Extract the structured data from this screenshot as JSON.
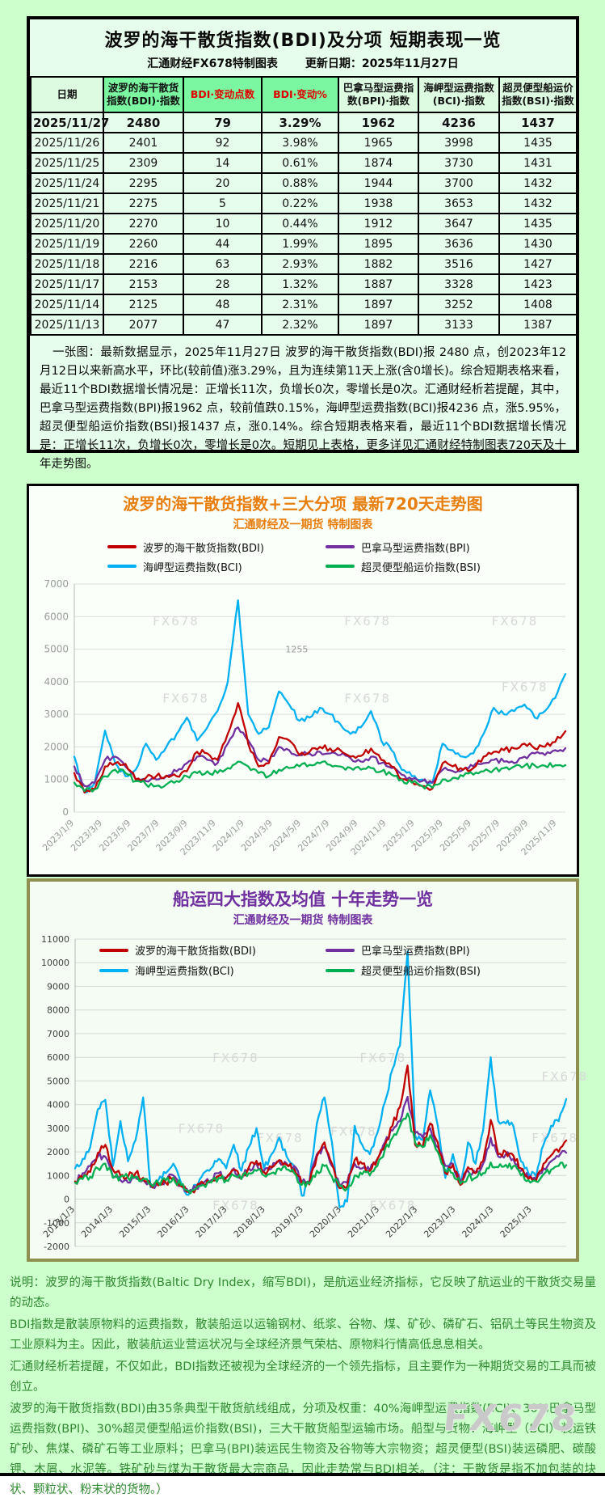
{
  "page": {
    "watermark": "FX678"
  },
  "table_section": {
    "title": "波罗的海干散货指数(BDI)及分项 短期表现一览",
    "subtitle_left": "汇通财经FX678特制图表",
    "subtitle_right": "更新日期：2025年11月27日",
    "columns": [
      "日期",
      "波罗的海干散货指数(BDI)·指数",
      "BDI·变动点数",
      "BDI·变动%",
      "巴拿马型运费指数(BPI)·指数",
      "海岬型运费指数(BCI)·指数",
      "超灵便型船运价指数(BSI)·指数"
    ],
    "rows": [
      [
        "2025/11/27",
        "2480",
        "79",
        "3.29%",
        "1962",
        "4236",
        "1437"
      ],
      [
        "2025/11/26",
        "2401",
        "92",
        "3.98%",
        "1965",
        "3998",
        "1435"
      ],
      [
        "2025/11/25",
        "2309",
        "14",
        "0.61%",
        "1874",
        "3730",
        "1431"
      ],
      [
        "2025/11/24",
        "2295",
        "20",
        "0.88%",
        "1944",
        "3700",
        "1432"
      ],
      [
        "2025/11/21",
        "2275",
        "5",
        "0.22%",
        "1938",
        "3653",
        "1432"
      ],
      [
        "2025/11/20",
        "2270",
        "10",
        "0.44%",
        "1912",
        "3647",
        "1435"
      ],
      [
        "2025/11/19",
        "2260",
        "44",
        "1.99%",
        "1895",
        "3636",
        "1430"
      ],
      [
        "2025/11/18",
        "2216",
        "63",
        "2.93%",
        "1882",
        "3516",
        "1427"
      ],
      [
        "2025/11/17",
        "2153",
        "28",
        "1.32%",
        "1887",
        "3328",
        "1423"
      ],
      [
        "2025/11/14",
        "2125",
        "48",
        "2.31%",
        "1897",
        "3252",
        "1408"
      ],
      [
        "2025/11/13",
        "2077",
        "47",
        "2.32%",
        "1897",
        "3133",
        "1387"
      ]
    ],
    "note": "一张图：最新数据显示，2025年11月27日 波罗的海干散货指数(BDI)报 2480 点，创2023年12月12日以来新高水平，环比(较前值)涨3.29%，且为连续第11天上涨(含0增长)。综合短期表格来看，最近11个BDI数据增长情况是：正增长11次，负增长0次，零增长是0次。汇通财经析若提醒，其中，巴拿马型运费指数(BPI)报1962 点，较前值跌0.15%，海岬型运费指数(BCI)报4236 点，涨5.95%，超灵便型船运价指数(BSI)报1437 点，涨0.14%。综合短期表格来看，最近11个BDI数据增长情况是：正增长11次，负增长0次，零增长是0次。短期见上表格，更多详见汇通财经特制图表720天及十年走势图。"
  },
  "footer": {
    "paragraphs": [
      "说明：波罗的海干散货指数(Baltic Dry Index，缩写BDI)，是航运业经济指标，它反映了航运业的干散货交易量的动态。",
      "BDI指数是散装原物料的运费指数，散装船运以运输钢材、纸浆、谷物、煤、矿砂、磷矿石、铝矾土等民生物资及工业原料为主。因此，散装航运业营运状况与全球经济景气荣枯、原物料行情高低息息相关。",
      "汇通财经析若提醒，不仅如此，BDI指数还被视为全球经济的一个领先指标，且主要作为一种期货交易的工具而被创立。",
      "波罗的海干散货指数(BDI)由35条典型干散货航线组成，分项及权重：40%海岬型运费指数(BCI)、30%巴拿马型运费指数(BPI)、30%超灵便型船运价指数(BSI)，三大干散货船型运输市场。船型与货物：海岬型（BCI）装运铁矿砂、焦煤、磷矿石等工业原料；巴拿马(BPI)装运民生物资及谷物等大宗物资；超灵便型(BSI)装运磷肥、碳酸钾、木屑、水泥等。铁矿砂与煤为干散货最大宗商品，因此走势常与BDI相关。（注：干散货是指不加包装的块状、颗粒状、粉末状的货物。）"
    ]
  },
  "chart_data": [
    {
      "id": "chart720",
      "type": "line",
      "title": "波罗的海干散货指数+三大分项  最新720天走势图",
      "subtitle": "汇通财经及一期货  特制图表",
      "x_span": "2023/1/9 - 2025/11/27 (points evenly spaced in time)",
      "ylim": [
        0,
        7000
      ],
      "yticks": [
        0,
        1000,
        2000,
        3000,
        4000,
        5000,
        6000,
        7000
      ],
      "grid": true,
      "legend_position": "top",
      "watermark_text": "FX678",
      "watermark_positions": [
        {
          "x": 0.16,
          "y": 0.18
        },
        {
          "x": 0.55,
          "y": 0.18
        },
        {
          "x": 0.85,
          "y": 0.18
        },
        {
          "x": 0.18,
          "y": 0.52
        },
        {
          "x": 0.55,
          "y": 0.52
        },
        {
          "x": 0.87,
          "y": 0.47
        }
      ],
      "annotations": [
        {
          "text": "1255",
          "fx": 0.43,
          "fy": 0.3
        }
      ],
      "xticks": [
        {
          "label": "2023/1/9",
          "f": 0.0
        },
        {
          "label": "2023/3/9",
          "f": 0.0578
        },
        {
          "label": "2023/5/9",
          "f": 0.1156
        },
        {
          "label": "2023/7/9",
          "f": 0.1734
        },
        {
          "label": "2023/9/9",
          "f": 0.2312
        },
        {
          "label": "2023/11/9",
          "f": 0.289
        },
        {
          "label": "2024/1/9",
          "f": 0.3468
        },
        {
          "label": "2024/3/9",
          "f": 0.4046
        },
        {
          "label": "2024/5/9",
          "f": 0.4624
        },
        {
          "label": "2024/7/9",
          "f": 0.5202
        },
        {
          "label": "2024/9/9",
          "f": 0.578
        },
        {
          "label": "2024/11/9",
          "f": 0.6358
        },
        {
          "label": "2025/1/9",
          "f": 0.6936
        },
        {
          "label": "2025/3/9",
          "f": 0.7514
        },
        {
          "label": "2025/5/9",
          "f": 0.8092
        },
        {
          "label": "2025/7/9",
          "f": 0.8671
        },
        {
          "label": "2025/9/9",
          "f": 0.9249
        },
        {
          "label": "2025/11/9",
          "f": 0.9827
        }
      ],
      "series": [
        {
          "key": "BDI",
          "name": "波罗的海干散货指数(BDI)",
          "color": "#C00000",
          "z": 3,
          "values": [
            1200,
            600,
            700,
            1400,
            1500,
            1480,
            1000,
            1050,
            1100,
            1120,
            1100,
            1250,
            1850,
            1800,
            1600,
            2400,
            3346,
            2094,
            1400,
            1500,
            2300,
            2200,
            1750,
            1850,
            2000,
            1950,
            1900,
            1700,
            1720,
            1950,
            1600,
            1400,
            1000,
            950,
            800,
            720,
            1500,
            1400,
            1300,
            1350,
            1700,
            1850,
            1900,
            1950,
            2100,
            1950,
            2000,
            2150,
            2480
          ]
        },
        {
          "key": "BPI",
          "name": "巴拿马型运费指数(BPI)",
          "color": "#7030A0",
          "z": 2,
          "values": [
            1400,
            800,
            900,
            1600,
            1700,
            1400,
            1000,
            950,
            1000,
            1100,
            1250,
            1500,
            1700,
            1600,
            1500,
            2100,
            2600,
            2200,
            1600,
            1550,
            2000,
            1900,
            1750,
            1800,
            1850,
            1800,
            1750,
            1650,
            1550,
            1700,
            1500,
            1350,
            1150,
            1000,
            950,
            900,
            1300,
            1255,
            1300,
            1400,
            1500,
            1600,
            1550,
            1500,
            1700,
            1800,
            1750,
            1900,
            1962
          ]
        },
        {
          "key": "BCI",
          "name": "海岬型运费指数(BCI)",
          "color": "#00B0F0",
          "z": 1,
          "values": [
            1700,
            600,
            900,
            2500,
            1500,
            1100,
            1300,
            2100,
            1600,
            2000,
            2400,
            2900,
            2200,
            2600,
            3100,
            4000,
            6500,
            3000,
            2400,
            2600,
            3700,
            3300,
            2800,
            2900,
            3200,
            3000,
            2700,
            2400,
            2600,
            3100,
            2200,
            1900,
            1300,
            1100,
            1000,
            900,
            2100,
            1900,
            1700,
            1800,
            2400,
            3200,
            3000,
            3100,
            3300,
            2900,
            3100,
            3500,
            4236
          ]
        },
        {
          "key": "BSI",
          "name": "超灵便型船运价指数(BSI)",
          "color": "#00B050",
          "z": 4,
          "values": [
            900,
            650,
            700,
            1100,
            1300,
            1200,
            950,
            850,
            800,
            850,
            950,
            1100,
            1200,
            1250,
            1200,
            1350,
            1550,
            1400,
            1200,
            1100,
            1300,
            1350,
            1400,
            1450,
            1500,
            1450,
            1400,
            1350,
            1300,
            1350,
            1250,
            1150,
            1000,
            900,
            800,
            750,
            1000,
            1050,
            1100,
            1150,
            1250,
            1300,
            1350,
            1400,
            1420,
            1430,
            1420,
            1435,
            1437
          ]
        }
      ]
    },
    {
      "id": "chart10y",
      "type": "line",
      "title": "船运四大指数及均值 十年走势一览",
      "subtitle": "汇通财经及一期货 特制图表",
      "x_span": "2013/1/3 - 2025/11/27 (points evenly spaced in time)",
      "ylim": [
        -2000,
        11000
      ],
      "yticks": [
        -2000,
        -1000,
        0,
        1000,
        2000,
        3000,
        4000,
        5000,
        6000,
        7000,
        8000,
        9000,
        10000,
        11000
      ],
      "grid": true,
      "legend_position": "inside-top",
      "watermark_text": "FX678",
      "watermark_positions": [
        {
          "x": 0.28,
          "y": 0.4
        },
        {
          "x": 0.58,
          "y": 0.4
        },
        {
          "x": 0.95,
          "y": 0.46
        },
        {
          "x": 0.21,
          "y": 0.63
        },
        {
          "x": 0.37,
          "y": 0.66
        },
        {
          "x": 0.52,
          "y": 0.64
        },
        {
          "x": 0.93,
          "y": 0.66
        },
        {
          "x": 0.28,
          "y": 0.88
        },
        {
          "x": 0.6,
          "y": 0.88
        }
      ],
      "annotations": [],
      "xticks": [
        {
          "label": "2013/1/3",
          "f": 0.0
        },
        {
          "label": "2014/1/3",
          "f": 0.0775
        },
        {
          "label": "2015/1/3",
          "f": 0.155
        },
        {
          "label": "2016/1/3",
          "f": 0.2326
        },
        {
          "label": "2017/1/3",
          "f": 0.3101
        },
        {
          "label": "2018/1/3",
          "f": 0.3876
        },
        {
          "label": "2019/1/3",
          "f": 0.4651
        },
        {
          "label": "2020/1/3",
          "f": 0.5426
        },
        {
          "label": "2021/1/3",
          "f": 0.6202
        },
        {
          "label": "2022/1/3",
          "f": 0.6977
        },
        {
          "label": "2023/1/3",
          "f": 0.7752
        },
        {
          "label": "2024/1/3",
          "f": 0.8527
        },
        {
          "label": "2025/1/3",
          "f": 0.9302
        }
      ],
      "series": [
        {
          "key": "BDI",
          "name": "波罗的海干散货指数(BDI)",
          "color": "#C00000",
          "z": 3,
          "values": [
            750,
            900,
            1150,
            1950,
            2300,
            1250,
            1000,
            950,
            1100,
            900,
            600,
            580,
            700,
            900,
            550,
            310,
            450,
            650,
            720,
            980,
            900,
            1250,
            850,
            1350,
            1620,
            1150,
            1350,
            1650,
            1450,
            1270,
            680,
            620,
            1800,
            2400,
            1500,
            460,
            520,
            1650,
            1500,
            1200,
            1700,
            2300,
            3100,
            3900,
            5650,
            2300,
            2200,
            3200,
            2400,
            1100,
            1450,
            600,
            1350,
            1100,
            1600,
            3346,
            1900,
            2000,
            1850,
            1300,
            850,
            760,
            1500,
            1850,
            2000,
            2480
          ]
        },
        {
          "key": "BPI",
          "name": "巴拿马型运费指数(BPI)",
          "color": "#7030A0",
          "z": 2,
          "values": [
            700,
            1100,
            1400,
            1800,
            1800,
            950,
            800,
            700,
            900,
            800,
            550,
            600,
            800,
            1000,
            600,
            300,
            450,
            700,
            800,
            1100,
            900,
            1300,
            900,
            1300,
            1500,
            1200,
            1300,
            1600,
            1500,
            1400,
            700,
            750,
            1900,
            2200,
            1400,
            600,
            700,
            1500,
            1300,
            1200,
            1700,
            2400,
            2900,
            3300,
            4328,
            2800,
            2600,
            3000,
            2200,
            1400,
            1500,
            700,
            1200,
            1100,
            1500,
            2600,
            1800,
            1900,
            1700,
            1200,
            900,
            850,
            1300,
            1600,
            1800,
            1962
          ]
        },
        {
          "key": "BCI",
          "name": "海岬型运费指数(BCI)",
          "color": "#00B0F0",
          "z": 1,
          "values": [
            1300,
            1700,
            2200,
            3800,
            4200,
            1400,
            3300,
            1600,
            2500,
            4300,
            500,
            800,
            1100,
            1500,
            700,
            180,
            600,
            1100,
            1300,
            1700,
            1300,
            2300,
            1200,
            2200,
            3000,
            1300,
            1900,
            2600,
            1800,
            1400,
            150,
            700,
            3200,
            4300,
            2400,
            -350,
            -100,
            3100,
            2300,
            1900,
            2800,
            4100,
            5500,
            6500,
            10485,
            2700,
            2500,
            4600,
            3100,
            900,
            1900,
            650,
            2400,
            1500,
            2900,
            6000,
            3300,
            3200,
            3100,
            1600,
            1100,
            950,
            2300,
            3100,
            3300,
            4236
          ]
        },
        {
          "key": "BSI",
          "name": "超灵便型船运价指数(BSI)",
          "color": "#00B050",
          "z": 4,
          "values": [
            700,
            850,
            950,
            1300,
            1500,
            900,
            950,
            900,
            950,
            850,
            650,
            700,
            800,
            900,
            600,
            350,
            450,
            600,
            700,
            900,
            800,
            1000,
            850,
            1100,
            1200,
            1000,
            1100,
            1300,
            1250,
            1100,
            600,
            650,
            1200,
            1400,
            950,
            550,
            450,
            1000,
            1050,
            1000,
            1400,
            2100,
            2600,
            3100,
            3624,
            2400,
            2200,
            2700,
            2000,
            1200,
            1100,
            650,
            950,
            900,
            1100,
            1550,
            1350,
            1450,
            1400,
            1000,
            800,
            750,
            1050,
            1250,
            1400,
            1437
          ]
        }
      ]
    }
  ]
}
